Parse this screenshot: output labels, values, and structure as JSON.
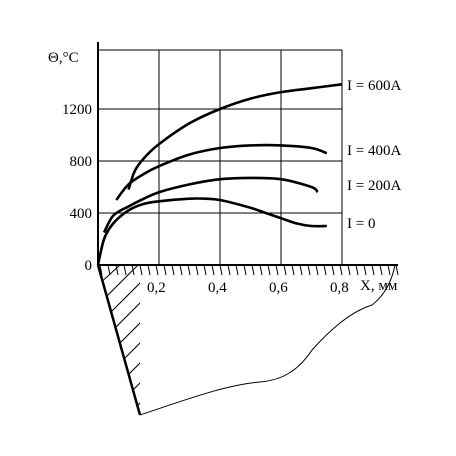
{
  "chart_data": {
    "type": "line",
    "ylabel": "Θ,°C",
    "xlabel": "X, мм",
    "xlim": [
      0,
      0.8
    ],
    "ylim": [
      0,
      1400
    ],
    "x_ticks": [
      "0,2",
      "0,4",
      "0,6",
      "0,8"
    ],
    "y_ticks": [
      {
        "value": 0,
        "label": "0"
      },
      {
        "value": 400,
        "label": "400"
      },
      {
        "value": 800,
        "label": "800"
      },
      {
        "value": 1200,
        "label": "1200"
      }
    ],
    "grid": true,
    "series": [
      {
        "name": "I = 600A",
        "x": [
          0.1,
          0.12,
          0.15,
          0.2,
          0.3,
          0.4,
          0.5,
          0.6,
          0.7,
          0.8
        ],
        "y": [
          580,
          720,
          820,
          930,
          1090,
          1200,
          1280,
          1330,
          1360,
          1390
        ]
      },
      {
        "name": "I = 400A",
        "x": [
          0.06,
          0.1,
          0.15,
          0.2,
          0.3,
          0.4,
          0.5,
          0.6,
          0.7,
          0.75
        ],
        "y": [
          500,
          620,
          700,
          760,
          850,
          900,
          920,
          920,
          900,
          860
        ]
      },
      {
        "name": "I = 200A",
        "x": [
          0.02,
          0.05,
          0.1,
          0.15,
          0.2,
          0.3,
          0.4,
          0.5,
          0.6,
          0.7,
          0.72
        ],
        "y": [
          250,
          380,
          450,
          510,
          560,
          620,
          660,
          670,
          660,
          600,
          560
        ]
      },
      {
        "name": "I = 0",
        "x": [
          0,
          0.02,
          0.05,
          0.1,
          0.15,
          0.2,
          0.3,
          0.35,
          0.4,
          0.5,
          0.55,
          0.6,
          0.65,
          0.7,
          0.75
        ],
        "y": [
          0,
          200,
          320,
          420,
          470,
          490,
          510,
          510,
          500,
          440,
          400,
          360,
          320,
          300,
          300
        ]
      }
    ]
  }
}
